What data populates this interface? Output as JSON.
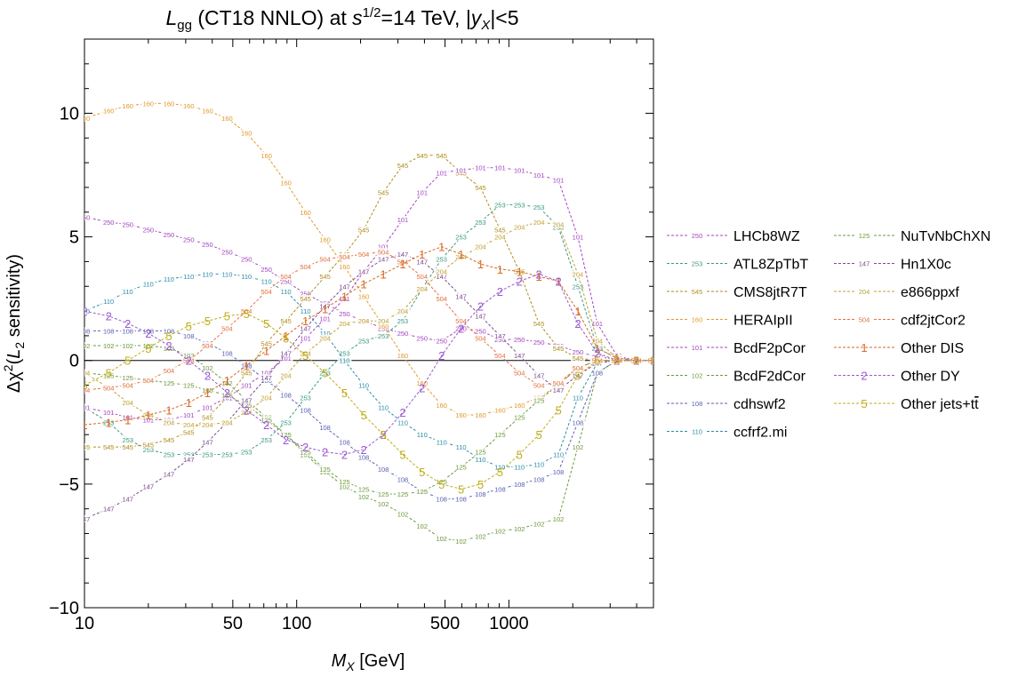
{
  "chart_data": {
    "type": "line",
    "title": "L_gg (CT18 NNLO) at s^1/2=14 TeV, |y_X|<5",
    "title_parts": {
      "L": "L",
      "gg": "gg",
      "mid": " (CT18 NNLO) at ",
      "s": "s",
      "exp": "1/2",
      "end1": "=14 TeV, |",
      "y": "y",
      "X": "X",
      "end2": "|<5"
    },
    "xlabel": "M_X [GeV]",
    "xlabel_parts": {
      "M": "M",
      "X": "X",
      "unit": " [GeV]"
    },
    "ylabel": "Δχ²(L₂ sensitivity)",
    "ylabel_parts": {
      "a": "Δχ",
      "sup": "2",
      "b": "(",
      "L": "L",
      "sub": "2",
      "c": " sensitivity)"
    },
    "x_scale": "log",
    "xlim": [
      10,
      4800
    ],
    "ylim": [
      -10,
      13
    ],
    "x_ticks": [
      10,
      50,
      100,
      500,
      1000
    ],
    "x_tick_labels": [
      "10",
      "50",
      "100",
      "500",
      "1000"
    ],
    "y_ticks": [
      -10,
      -5,
      0,
      5,
      10
    ],
    "y_tick_labels": [
      "−10",
      "−5",
      "0",
      "5",
      "10"
    ],
    "zero_line": true,
    "grid": false,
    "legend_placement": "right",
    "x": [
      10,
      13,
      16,
      20,
      25,
      31,
      38,
      47,
      58,
      72,
      89,
      110,
      136,
      168,
      207,
      256,
      316,
      390,
      482,
      595,
      735,
      908,
      1121,
      1385,
      1711,
      2113,
      2610,
      3224,
      3982,
      4800
    ],
    "series": [
      {
        "name": "LHCb8WZ",
        "marker": "250",
        "color": "#a347c2",
        "values": [
          5.8,
          5.6,
          5.5,
          5.3,
          5.1,
          4.9,
          4.7,
          4.4,
          4.1,
          3.7,
          3.2,
          2.7,
          2.3,
          1.9,
          1.6,
          1.3,
          1.1,
          0.9,
          0.8,
          1.3,
          1.2,
          0.85,
          0.85,
          0.75,
          0.6,
          0.35,
          0.15,
          0.05,
          0.02,
          0.0
        ]
      },
      {
        "name": "ATL8ZpTbT",
        "marker": "253",
        "color": "#3f9a84",
        "values": [
          -1.9,
          -2.5,
          -3.2,
          -3.6,
          -3.8,
          -3.8,
          -3.8,
          -3.8,
          -3.7,
          -3.2,
          -2.5,
          -1.5,
          -0.5,
          0.3,
          0.8,
          1.0,
          1.6,
          2.9,
          4.1,
          5.0,
          5.6,
          6.3,
          6.3,
          6.2,
          5.4,
          3.0,
          0.5,
          0.1,
          0.02,
          0.0
        ]
      },
      {
        "name": "CMS8jtR7T",
        "marker": "545",
        "color": "#b08e1e",
        "values": [
          -3.5,
          -3.5,
          -3.5,
          -3.4,
          -3.2,
          -2.9,
          -2.3,
          -1.5,
          -0.5,
          0.7,
          1.6,
          2.5,
          3.4,
          4.3,
          5.3,
          6.8,
          7.9,
          8.3,
          8.3,
          7.6,
          7.0,
          5.3,
          3.6,
          1.5,
          0.5,
          0.1,
          0.0,
          0.0,
          0.0,
          0.0
        ]
      },
      {
        "name": "HERAIpII",
        "marker": "160",
        "color": "#e29a2c",
        "values": [
          9.8,
          10.1,
          10.3,
          10.4,
          10.4,
          10.3,
          10.1,
          9.8,
          9.2,
          8.3,
          7.2,
          6.0,
          4.9,
          3.8,
          2.6,
          1.4,
          0.2,
          -0.9,
          -1.8,
          -2.2,
          -2.2,
          -2.0,
          -1.8,
          -1.5,
          -1.0,
          -0.3,
          0.0,
          0.0,
          0.0,
          0.0
        ]
      },
      {
        "name": "BcdF2pCor",
        "marker": "101",
        "color": "#a347c2",
        "values": [
          -1.9,
          -2.1,
          -2.3,
          -2.4,
          -2.4,
          -2.2,
          -1.9,
          -1.5,
          -1.0,
          -0.5,
          0.1,
          0.9,
          1.7,
          2.5,
          3.6,
          4.6,
          5.7,
          6.8,
          7.6,
          7.7,
          7.8,
          7.8,
          7.7,
          7.5,
          7.3,
          5.0,
          1.5,
          0.2,
          0.0,
          0.0
        ]
      },
      {
        "name": "BcdF2dCor",
        "marker": "102",
        "color": "#6d9a3d",
        "values": [
          0.6,
          0.6,
          0.6,
          0.6,
          0.5,
          0.2,
          -0.3,
          -0.9,
          -1.6,
          -2.3,
          -3.0,
          -3.8,
          -4.5,
          -5.1,
          -5.5,
          -5.8,
          -6.2,
          -6.7,
          -7.2,
          -7.3,
          -7.1,
          -6.9,
          -6.8,
          -6.6,
          -6.4,
          -3.5,
          -0.5,
          0.0,
          0.0,
          0.0
        ]
      },
      {
        "name": "cdhswf2",
        "marker": "108",
        "color": "#5c62b5",
        "values": [
          1.2,
          1.2,
          1.2,
          1.2,
          1.2,
          1.0,
          0.7,
          0.3,
          -0.2,
          -0.8,
          -1.4,
          -2.0,
          -2.7,
          -3.3,
          -3.9,
          -4.4,
          -4.8,
          -5.3,
          -5.6,
          -5.6,
          -5.4,
          -5.2,
          -5.0,
          -4.8,
          -4.5,
          -2.5,
          -0.5,
          0.0,
          0.0,
          0.0
        ]
      },
      {
        "name": "ccfrf2.mi",
        "marker": "110",
        "color": "#2d8fa8",
        "values": [
          2.0,
          2.4,
          2.8,
          3.1,
          3.3,
          3.4,
          3.5,
          3.5,
          3.4,
          3.2,
          2.8,
          2.0,
          1.1,
          0.0,
          -1.0,
          -1.9,
          -2.5,
          -3.0,
          -3.3,
          -3.5,
          -4.0,
          -4.3,
          -4.3,
          -4.2,
          -3.8,
          -1.5,
          -0.1,
          0.0,
          0.0,
          0.0
        ]
      },
      {
        "name": "NuTvNbChXN",
        "marker": "125",
        "color": "#6d9a3d",
        "values": [
          -0.5,
          -0.6,
          -0.7,
          -0.8,
          -0.9,
          -1.0,
          -1.2,
          -1.4,
          -1.8,
          -2.4,
          -3.0,
          -3.7,
          -4.4,
          -4.9,
          -5.2,
          -5.4,
          -5.4,
          -5.3,
          -4.9,
          -4.3,
          -3.7,
          -3.0,
          -2.3,
          -1.6,
          -1.0,
          -0.3,
          0.0,
          0.0,
          0.0,
          0.0
        ]
      },
      {
        "name": "Hn1X0c",
        "marker": "147",
        "color": "#7c4a8e",
        "values": [
          -6.4,
          -6.0,
          -5.6,
          -5.1,
          -4.6,
          -4.0,
          -3.3,
          -2.5,
          -1.6,
          -0.7,
          0.3,
          1.3,
          2.2,
          3.0,
          3.6,
          4.1,
          4.3,
          4.0,
          3.4,
          2.6,
          1.8,
          1.0,
          0.2,
          -0.6,
          -1.2,
          -0.6,
          -0.1,
          0.0,
          0.0,
          0.0
        ]
      },
      {
        "name": "e866ppxf",
        "marker": "204",
        "color": "#c0a232",
        "values": [
          -0.5,
          -1.1,
          -1.7,
          -2.2,
          -2.5,
          -2.6,
          -2.6,
          -2.5,
          -2.1,
          -1.5,
          -0.6,
          0.3,
          0.9,
          1.5,
          1.6,
          1.6,
          2.0,
          2.9,
          3.6,
          4.2,
          4.6,
          5.0,
          5.4,
          5.6,
          5.5,
          3.5,
          0.8,
          0.1,
          0.0,
          0.0
        ]
      },
      {
        "name": "cdf2jtCor2",
        "marker": "504",
        "color": "#e3703f",
        "values": [
          -1.2,
          -1.1,
          -1.0,
          -0.8,
          -0.4,
          0.0,
          0.6,
          1.3,
          2.0,
          2.8,
          3.4,
          3.8,
          4.1,
          4.2,
          4.3,
          4.4,
          4.0,
          3.4,
          2.5,
          1.6,
          0.9,
          0.2,
          -0.5,
          -1.0,
          -0.9,
          -0.3,
          0.0,
          0.0,
          0.0,
          0.0
        ]
      },
      {
        "name": "Other DIS",
        "marker": "1",
        "color": "#d96a24",
        "values": [
          -2.6,
          -2.5,
          -2.4,
          -2.2,
          -2.0,
          -1.7,
          -1.3,
          -0.8,
          -0.2,
          0.4,
          1.0,
          1.6,
          2.1,
          2.6,
          3.1,
          3.5,
          3.9,
          4.3,
          4.6,
          4.3,
          3.9,
          3.7,
          3.6,
          3.4,
          3.2,
          2.0,
          0.5,
          0.1,
          0.0,
          0.0
        ]
      },
      {
        "name": "Other DY",
        "marker": "2",
        "color": "#9b59d0",
        "values": [
          2.0,
          1.8,
          1.5,
          1.1,
          0.6,
          0.0,
          -0.6,
          -1.3,
          -2.0,
          -2.6,
          -3.2,
          -3.5,
          -3.7,
          -3.8,
          -3.6,
          -3.0,
          -2.1,
          -1.1,
          0.2,
          1.3,
          2.2,
          2.8,
          3.2,
          3.5,
          3.2,
          1.5,
          0.3,
          0.0,
          0.0,
          0.0
        ]
      },
      {
        "name": "Other jets+tt̄",
        "name_base": "Other jets+t",
        "name_bar": "t",
        "marker": "5",
        "color": "#bfae1c",
        "values": [
          -1.0,
          -0.5,
          0.0,
          0.5,
          1.0,
          1.4,
          1.6,
          1.8,
          1.9,
          1.5,
          0.9,
          0.2,
          -0.5,
          -1.3,
          -2.2,
          -3.0,
          -3.8,
          -4.5,
          -5.0,
          -5.2,
          -5.0,
          -4.5,
          -3.8,
          -3.0,
          -2.0,
          -0.6,
          0.0,
          0.0,
          0.0,
          0.0
        ]
      }
    ]
  }
}
